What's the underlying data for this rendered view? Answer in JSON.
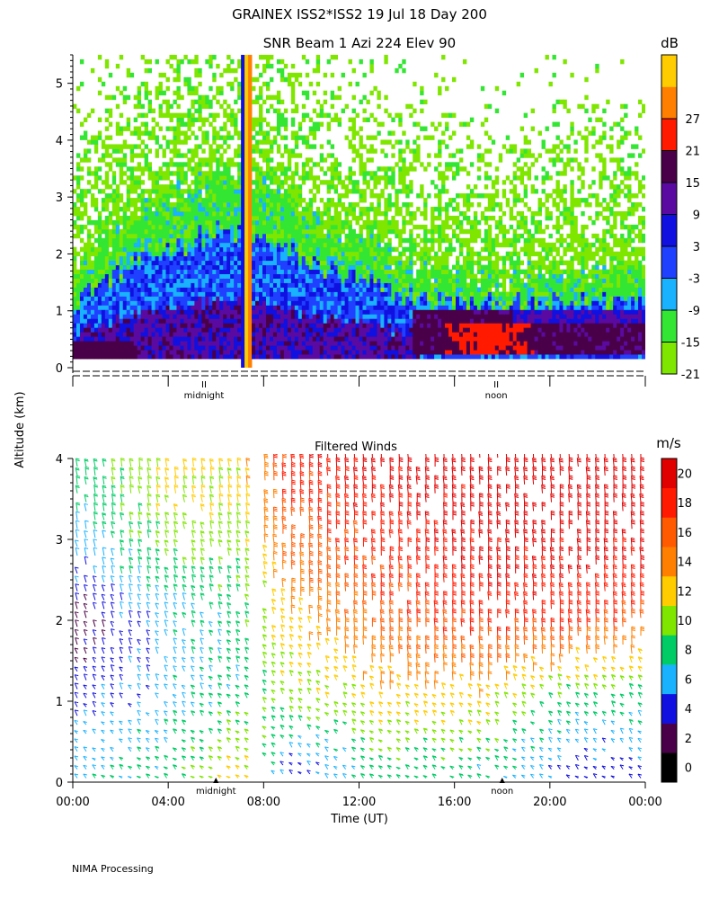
{
  "header": {
    "title": "GRAINEX ISS2*ISS2  19 Jul 18 Day 200"
  },
  "footer": {
    "credit": "NIMA Processing"
  },
  "shared": {
    "ylabel": "Altitude (km)"
  },
  "chart_data": [
    {
      "type": "heatmap",
      "title": "SNR Beam 1 Azi 224 Elev 90",
      "xlabel": "",
      "ylabel": "Altitude (km)",
      "ylim": [
        0,
        5.5
      ],
      "yticks": [
        "0",
        "1",
        "2",
        "3",
        "4",
        "5"
      ],
      "xlim_hours": [
        0,
        24
      ],
      "time_markers": [
        {
          "hour": 5.5,
          "label": "midnight"
        },
        {
          "hour": 17.75,
          "label": "noon"
        }
      ],
      "colorbar": {
        "unit": "dB",
        "levels": [
          "-21",
          "-15",
          "-9",
          "-3",
          "3",
          "9",
          "15",
          "21",
          "27"
        ],
        "colors": [
          "#7fe600",
          "#33e633",
          "#19b2ff",
          "#2040ff",
          "#1010e0",
          "#5a0aa0",
          "#4a0048",
          "#ff1a00",
          "#ff8000",
          "#ffcc00"
        ]
      },
      "features": {
        "bright_column_hours": [
          7.1,
          7.5
        ],
        "warm_layer": {
          "hours": [
            14.2,
            24
          ],
          "alt_km": [
            0.2,
            1.0
          ],
          "peak_hour": 17.5,
          "peak_db": 21
        },
        "boundary_layer_top_km": [
          [
            0,
            1.7
          ],
          [
            2,
            2.4
          ],
          [
            4,
            3.0
          ],
          [
            6,
            3.4
          ],
          [
            8,
            3.2
          ],
          [
            10,
            2.6
          ],
          [
            12,
            2.2
          ],
          [
            14,
            1.8
          ],
          [
            16,
            1.6
          ],
          [
            18,
            1.6
          ],
          [
            20,
            1.6
          ],
          [
            22,
            1.7
          ],
          [
            24,
            1.8
          ]
        ]
      }
    },
    {
      "type": "scatter",
      "subtype": "wind-barbs",
      "title": "Filtered Winds",
      "xlabel": "Time (UT)",
      "ylabel": "Altitude (km)",
      "ylim": [
        0,
        4
      ],
      "yticks": [
        "0",
        "1",
        "2",
        "3",
        "4"
      ],
      "xlim_hours": [
        0,
        24
      ],
      "xticks": [
        "00:00",
        "04:00",
        "08:00",
        "12:00",
        "16:00",
        "20:00",
        "00:00"
      ],
      "time_markers": [
        {
          "hour": 6.0,
          "label": "midnight"
        },
        {
          "hour": 18.0,
          "label": "noon"
        }
      ],
      "data_gap_hours": [
        7.5,
        8.0
      ],
      "colorbar": {
        "unit": "m/s",
        "levels": [
          "0",
          "2",
          "4",
          "6",
          "8",
          "10",
          "12",
          "14",
          "16",
          "18",
          "20"
        ],
        "colors": [
          "#000000",
          "#4a0048",
          "#1010e0",
          "#19b2ff",
          "#00cc66",
          "#7fe600",
          "#ffcc00",
          "#ff8000",
          "#ff5a00",
          "#ff1a00",
          "#e00000"
        ]
      },
      "speed_profile_mps": [
        {
          "hour": 0,
          "points": [
            [
              0.2,
              6
            ],
            [
              1.0,
              4
            ],
            [
              2.0,
              2
            ],
            [
              3.0,
              6
            ],
            [
              4.0,
              8
            ]
          ]
        },
        {
          "hour": 4,
          "points": [
            [
              0.2,
              8
            ],
            [
              1.0,
              6
            ],
            [
              2.0,
              6
            ],
            [
              3.0,
              10
            ],
            [
              4.0,
              12
            ]
          ]
        },
        {
          "hour": 7,
          "points": [
            [
              0.2,
              12
            ],
            [
              1.0,
              8
            ],
            [
              2.0,
              8
            ],
            [
              3.0,
              10
            ],
            [
              4.0,
              12
            ]
          ]
        },
        {
          "hour": 9,
          "points": [
            [
              0.2,
              4
            ],
            [
              1.0,
              10
            ],
            [
              2.0,
              12
            ],
            [
              3.0,
              16
            ],
            [
              4.0,
              18
            ]
          ]
        },
        {
          "hour": 13,
          "points": [
            [
              0.2,
              8
            ],
            [
              1.0,
              12
            ],
            [
              2.0,
              16
            ],
            [
              3.0,
              18
            ],
            [
              4.0,
              20
            ]
          ]
        },
        {
          "hour": 17,
          "points": [
            [
              0.2,
              8
            ],
            [
              1.0,
              12
            ],
            [
              2.0,
              18
            ],
            [
              3.0,
              20
            ],
            [
              4.0,
              20
            ]
          ]
        },
        {
          "hour": 21,
          "points": [
            [
              0.2,
              4
            ],
            [
              1.0,
              8
            ],
            [
              2.0,
              18
            ],
            [
              3.0,
              20
            ],
            [
              4.0,
              20
            ]
          ]
        },
        {
          "hour": 24,
          "points": [
            [
              0.2,
              4
            ],
            [
              1.0,
              8
            ],
            [
              2.0,
              16
            ],
            [
              3.0,
              20
            ],
            [
              4.0,
              20
            ]
          ]
        }
      ]
    }
  ]
}
